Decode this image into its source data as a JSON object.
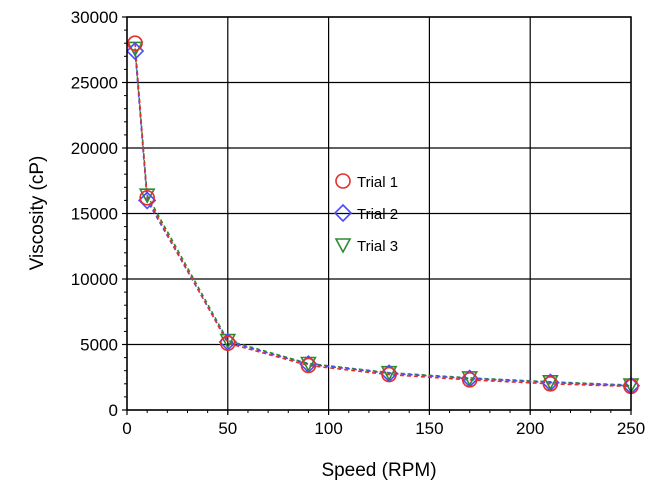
{
  "chart_data": {
    "type": "scatter",
    "xlabel": "Speed (RPM)",
    "ylabel": "Viscosity (cP)",
    "xlim": [
      0,
      250
    ],
    "ylim": [
      0,
      30000
    ],
    "x_ticks": [
      "0",
      "50",
      "100",
      "150",
      "200",
      "250"
    ],
    "y_ticks": [
      "0",
      "5000",
      "10000",
      "15000",
      "20000",
      "25000",
      "30000"
    ],
    "grid": true,
    "legend_position": "center",
    "series": [
      {
        "name": "Trial 1",
        "marker": "circle",
        "color": "#e03030",
        "x": [
          4,
          10,
          50,
          90,
          130,
          170,
          210,
          250
        ],
        "y": [
          28000,
          16200,
          5100,
          3400,
          2700,
          2300,
          2000,
          1800
        ]
      },
      {
        "name": "Trial 2",
        "marker": "diamond",
        "color": "#4a4aff",
        "x": [
          4,
          10,
          50,
          90,
          130,
          170,
          210,
          250
        ],
        "y": [
          27400,
          16000,
          5200,
          3500,
          2800,
          2400,
          2100,
          1850
        ]
      },
      {
        "name": "Trial 3",
        "marker": "triangle-down",
        "color": "#2e8b2e",
        "x": [
          4,
          10,
          50,
          90,
          130,
          170,
          210,
          250
        ],
        "y": [
          27600,
          16400,
          5300,
          3550,
          2850,
          2450,
          2150,
          1900
        ]
      }
    ]
  }
}
